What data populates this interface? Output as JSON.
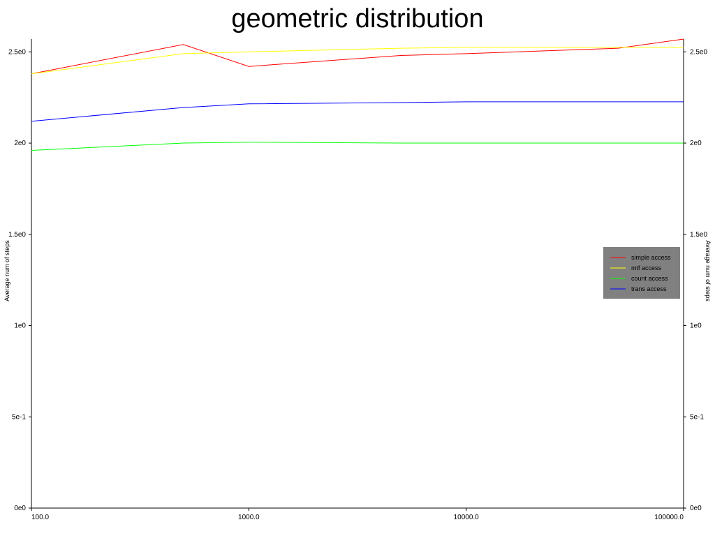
{
  "chart_data": {
    "type": "line",
    "title": "geometric distribution",
    "ylabel_left": "Average num of steps",
    "ylabel_right": "Average num of steps",
    "x_scale": "log",
    "xlim": [
      100,
      100000
    ],
    "ylim": [
      0,
      2.57
    ],
    "x_ticks": [
      {
        "value": 100,
        "label": "100.0"
      },
      {
        "value": 1000,
        "label": "1000.0"
      },
      {
        "value": 10000,
        "label": "10000.0"
      },
      {
        "value": 100000,
        "label": "100000.0"
      }
    ],
    "y_ticks": [
      {
        "value": 0,
        "label": "0e0"
      },
      {
        "value": 0.5,
        "label": "5e-1"
      },
      {
        "value": 1.0,
        "label": "1e0"
      },
      {
        "value": 1.5,
        "label": "1.5e0"
      },
      {
        "value": 2.0,
        "label": "2e0"
      },
      {
        "value": 2.5,
        "label": "2.5e0"
      }
    ],
    "x": [
      100,
      500,
      1000,
      5000,
      10000,
      50000,
      100000
    ],
    "series": [
      {
        "name": "simple access",
        "color": "#ff0000",
        "values": [
          2.38,
          2.54,
          2.42,
          2.48,
          2.49,
          2.52,
          2.57
        ]
      },
      {
        "name": "mtf access",
        "color": "#ffff00",
        "values": [
          2.38,
          2.49,
          2.5,
          2.52,
          2.525,
          2.525,
          2.525
        ]
      },
      {
        "name": "count access",
        "color": "#00ff00",
        "values": [
          1.96,
          2.0,
          2.005,
          2.0,
          2.0,
          2.0,
          2.0
        ]
      },
      {
        "name": "trans access",
        "color": "#0000ff",
        "values": [
          2.12,
          2.195,
          2.215,
          2.222,
          2.226,
          2.226,
          2.226
        ]
      }
    ],
    "legend_position": "right",
    "grid": false
  }
}
